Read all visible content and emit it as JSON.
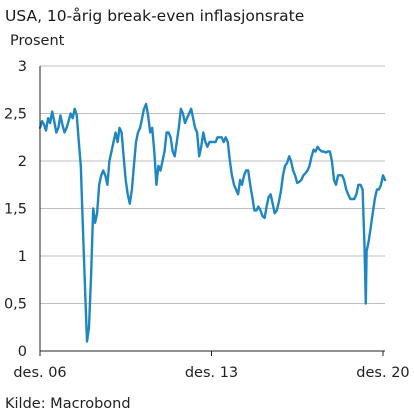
{
  "colors": {
    "line": "#1f86c4",
    "grid": "#bfbfbf",
    "axis": "#222222",
    "background": "#ffffff"
  },
  "chart_data": {
    "type": "line",
    "title": "USA, 10-årig break-even inflasjonsrate",
    "ylabel": "Prosent",
    "xlabel": "",
    "source": "Kilde: Macrobond",
    "ylim": [
      0,
      3
    ],
    "xlim": [
      "2006-12-01",
      "2020-12-31"
    ],
    "y_ticks": [
      0,
      0.5,
      1,
      1.5,
      2,
      2.5,
      3
    ],
    "y_tick_labels": [
      "0",
      "0,5",
      "1",
      "1,5",
      "2",
      "2,5",
      "3"
    ],
    "x_ticks": [
      "2006-12-01",
      "2013-12-01",
      "2020-12-01"
    ],
    "x_tick_labels": [
      "des. 06",
      "des. 13",
      "des. 20"
    ],
    "grid": true,
    "grid_axis": "y",
    "series": [
      {
        "x": [
          "2006-12-01",
          "2007-01-01",
          "2007-02-01",
          "2007-03-01",
          "2007-04-01",
          "2007-05-01",
          "2007-06-01",
          "2007-07-01",
          "2007-08-01",
          "2007-09-01",
          "2007-10-01",
          "2007-11-01",
          "2007-12-01",
          "2008-01-01",
          "2008-02-01",
          "2008-03-01",
          "2008-04-01",
          "2008-05-01",
          "2008-06-01",
          "2008-07-01",
          "2008-08-01",
          "2008-09-01",
          "2008-10-01",
          "2008-11-01",
          "2008-12-01",
          "2009-01-01",
          "2009-02-01",
          "2009-03-01",
          "2009-04-01",
          "2009-05-01",
          "2009-06-01",
          "2009-07-01",
          "2009-08-01",
          "2009-09-01",
          "2009-10-01",
          "2009-11-01",
          "2009-12-01",
          "2010-01-01",
          "2010-02-01",
          "2010-03-01",
          "2010-04-01",
          "2010-05-01",
          "2010-06-01",
          "2010-07-01",
          "2010-08-01",
          "2010-09-01",
          "2010-10-01",
          "2010-11-01",
          "2010-12-01",
          "2011-01-01",
          "2011-02-01",
          "2011-03-01",
          "2011-04-01",
          "2011-05-01",
          "2011-06-01",
          "2011-07-01",
          "2011-08-01",
          "2011-09-01",
          "2011-10-01",
          "2011-11-01",
          "2011-12-01",
          "2012-01-01",
          "2012-02-01",
          "2012-03-01",
          "2012-04-01",
          "2012-05-01",
          "2012-06-01",
          "2012-07-01",
          "2012-08-01",
          "2012-09-01",
          "2012-10-01",
          "2012-11-01",
          "2012-12-01",
          "2013-01-01",
          "2013-02-01",
          "2013-03-01",
          "2013-04-01",
          "2013-05-01",
          "2013-06-01",
          "2013-07-01",
          "2013-08-01",
          "2013-09-01",
          "2013-10-01",
          "2013-11-01",
          "2013-12-01",
          "2014-01-01",
          "2014-02-01",
          "2014-03-01",
          "2014-04-01",
          "2014-05-01",
          "2014-06-01",
          "2014-07-01",
          "2014-08-01",
          "2014-09-01",
          "2014-10-01",
          "2014-11-01",
          "2014-12-01",
          "2015-01-01",
          "2015-02-01",
          "2015-03-01",
          "2015-04-01",
          "2015-05-01",
          "2015-06-01",
          "2015-07-01",
          "2015-08-01",
          "2015-09-01",
          "2015-10-01",
          "2015-11-01",
          "2015-12-01",
          "2016-01-01",
          "2016-02-01",
          "2016-03-01",
          "2016-04-01",
          "2016-05-01",
          "2016-06-01",
          "2016-07-01",
          "2016-08-01",
          "2016-09-01",
          "2016-10-01",
          "2016-11-01",
          "2016-12-01",
          "2017-01-01",
          "2017-02-01",
          "2017-03-01",
          "2017-04-01",
          "2017-05-01",
          "2017-06-01",
          "2017-07-01",
          "2017-08-01",
          "2017-09-01",
          "2017-10-01",
          "2017-11-01",
          "2017-12-01",
          "2018-01-01",
          "2018-02-01",
          "2018-03-01",
          "2018-04-01",
          "2018-05-01",
          "2018-06-01",
          "2018-07-01",
          "2018-08-01",
          "2018-09-01",
          "2018-10-01",
          "2018-11-01",
          "2018-12-01",
          "2019-01-01",
          "2019-02-01",
          "2019-03-01",
          "2019-04-01",
          "2019-05-01",
          "2019-06-01",
          "2019-07-01",
          "2019-08-01",
          "2019-09-01",
          "2019-10-01",
          "2019-11-01",
          "2019-12-01",
          "2020-01-01",
          "2020-02-01",
          "2020-03-01",
          "2020-03-19",
          "2020-04-01",
          "2020-05-01",
          "2020-06-01",
          "2020-07-01",
          "2020-08-01",
          "2020-09-01",
          "2020-10-01",
          "2020-11-01",
          "2020-12-01",
          "2020-12-31"
        ],
        "values": [
          2.35,
          2.42,
          2.38,
          2.32,
          2.45,
          2.4,
          2.52,
          2.42,
          2.3,
          2.35,
          2.48,
          2.38,
          2.3,
          2.35,
          2.42,
          2.5,
          2.45,
          2.55,
          2.48,
          2.2,
          1.95,
          1.3,
          0.7,
          0.1,
          0.25,
          0.8,
          1.5,
          1.35,
          1.45,
          1.75,
          1.85,
          1.9,
          1.85,
          1.75,
          2.0,
          2.1,
          2.2,
          2.3,
          2.2,
          2.35,
          2.3,
          2.05,
          1.8,
          1.65,
          1.55,
          1.7,
          1.95,
          2.2,
          2.3,
          2.35,
          2.45,
          2.55,
          2.6,
          2.48,
          2.3,
          2.35,
          2.1,
          1.75,
          1.95,
          1.9,
          2.0,
          2.1,
          2.3,
          2.3,
          2.25,
          2.1,
          2.05,
          2.2,
          2.35,
          2.55,
          2.5,
          2.4,
          2.45,
          2.5,
          2.55,
          2.45,
          2.35,
          2.3,
          2.05,
          2.15,
          2.3,
          2.2,
          2.15,
          2.2,
          2.2,
          2.2,
          2.2,
          2.25,
          2.25,
          2.25,
          2.2,
          2.25,
          2.2,
          2.0,
          1.85,
          1.75,
          1.7,
          1.65,
          1.8,
          1.75,
          1.85,
          1.9,
          1.9,
          1.75,
          1.62,
          1.48,
          1.48,
          1.52,
          1.48,
          1.42,
          1.4,
          1.52,
          1.62,
          1.65,
          1.55,
          1.45,
          1.48,
          1.57,
          1.68,
          1.85,
          1.95,
          1.98,
          2.05,
          2.0,
          1.9,
          1.85,
          1.77,
          1.78,
          1.8,
          1.85,
          1.87,
          1.9,
          1.95,
          2.05,
          2.12,
          2.1,
          2.15,
          2.12,
          2.1,
          2.1,
          2.09,
          2.1,
          2.1,
          2.0,
          1.8,
          1.75,
          1.85,
          1.85,
          1.85,
          1.8,
          1.7,
          1.65,
          1.6,
          1.6,
          1.6,
          1.65,
          1.75,
          1.75,
          1.7,
          1.1,
          0.5,
          1.05,
          1.15,
          1.3,
          1.45,
          1.6,
          1.7,
          1.7,
          1.75,
          1.85,
          1.8
        ]
      }
    ]
  }
}
